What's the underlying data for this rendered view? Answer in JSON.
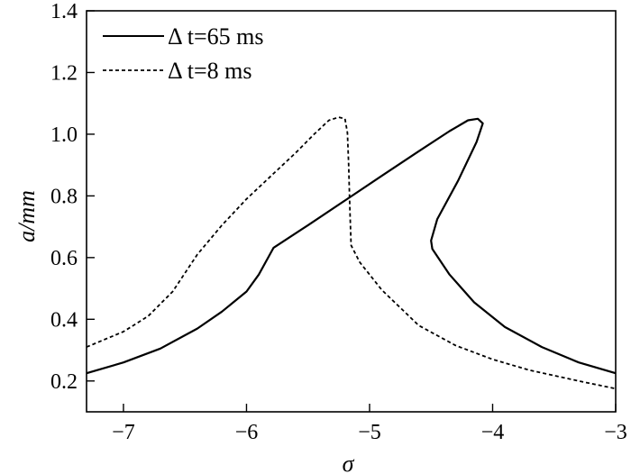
{
  "chart_data": {
    "type": "line",
    "title": "",
    "xlabel": "σ",
    "ylabel": "a/mm",
    "xlim": [
      -7.3,
      -3.0
    ],
    "ylim": [
      0.1,
      1.4
    ],
    "xticks": [
      -7,
      -6,
      -5,
      -4,
      -3
    ],
    "xtick_labels": [
      "−7",
      "−6",
      "−5",
      "−4",
      "−3"
    ],
    "yticks": [
      0.2,
      0.4,
      0.6,
      0.8,
      1.0,
      1.2,
      1.4
    ],
    "ytick_labels": [
      "0.2",
      "0.4",
      "0.6",
      "0.8",
      "1.0",
      "1.2",
      "1.4"
    ],
    "grid": false,
    "legend_position": "top-left",
    "series": [
      {
        "name": "Δ t=65 ms",
        "style": "solid",
        "color": "#000000",
        "points": [
          [
            -7.3,
            0.225
          ],
          [
            -7.0,
            0.26
          ],
          [
            -6.7,
            0.305
          ],
          [
            -6.4,
            0.37
          ],
          [
            -6.2,
            0.425
          ],
          [
            -6.0,
            0.49
          ],
          [
            -5.9,
            0.545
          ],
          [
            -5.78,
            0.632
          ],
          [
            -5.5,
            0.705
          ],
          [
            -5.2,
            0.785
          ],
          [
            -4.9,
            0.865
          ],
          [
            -4.6,
            0.945
          ],
          [
            -4.35,
            1.01
          ],
          [
            -4.2,
            1.045
          ],
          [
            -4.12,
            1.05
          ],
          [
            -4.08,
            1.035
          ],
          [
            -4.13,
            0.975
          ],
          [
            -4.28,
            0.85
          ],
          [
            -4.45,
            0.725
          ],
          [
            -4.5,
            0.655
          ],
          [
            -4.49,
            0.628
          ],
          [
            -4.35,
            0.545
          ],
          [
            -4.15,
            0.455
          ],
          [
            -3.9,
            0.375
          ],
          [
            -3.6,
            0.31
          ],
          [
            -3.3,
            0.26
          ],
          [
            -3.0,
            0.225
          ]
        ]
      },
      {
        "name": "Δ t=8 ms",
        "style": "dashed",
        "color": "#000000",
        "points": [
          [
            -7.3,
            0.31
          ],
          [
            -7.0,
            0.36
          ],
          [
            -6.8,
            0.41
          ],
          [
            -6.6,
            0.49
          ],
          [
            -6.4,
            0.61
          ],
          [
            -6.2,
            0.705
          ],
          [
            -6.0,
            0.79
          ],
          [
            -5.8,
            0.865
          ],
          [
            -5.6,
            0.94
          ],
          [
            -5.45,
            1.0
          ],
          [
            -5.33,
            1.045
          ],
          [
            -5.25,
            1.055
          ],
          [
            -5.2,
            1.05
          ],
          [
            -5.18,
            1.005
          ],
          [
            -5.17,
            0.9
          ],
          [
            -5.16,
            0.76
          ],
          [
            -5.15,
            0.64
          ],
          [
            -5.08,
            0.585
          ],
          [
            -4.9,
            0.495
          ],
          [
            -4.6,
            0.38
          ],
          [
            -4.3,
            0.315
          ],
          [
            -4.0,
            0.27
          ],
          [
            -3.7,
            0.235
          ],
          [
            -3.3,
            0.2
          ],
          [
            -3.0,
            0.175
          ]
        ]
      }
    ]
  }
}
